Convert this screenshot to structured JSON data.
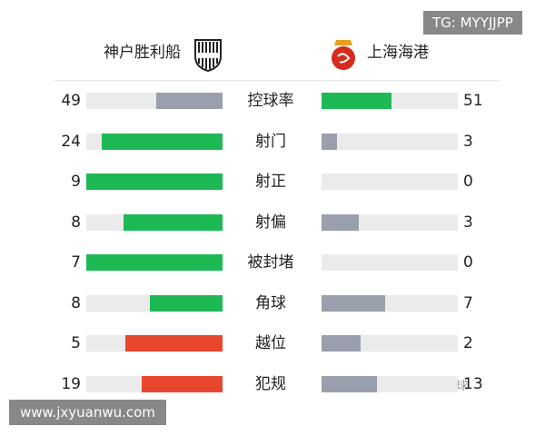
{
  "header": {
    "home_team": "神户胜利船",
    "away_team": "上海海港"
  },
  "stats": [
    {
      "label": "控球率",
      "home": 49,
      "away": 51,
      "home_color": "#9a9fae",
      "away_color": "#1db954"
    },
    {
      "label": "射门",
      "home": 24,
      "away": 3,
      "home_color": "#1db954",
      "away_color": "#9a9fae"
    },
    {
      "label": "射正",
      "home": 9,
      "away": 0,
      "home_color": "#1db954",
      "away_color": "#9a9fae"
    },
    {
      "label": "射偏",
      "home": 8,
      "away": 3,
      "home_color": "#1db954",
      "away_color": "#9a9fae"
    },
    {
      "label": "被封堵",
      "home": 7,
      "away": 0,
      "home_color": "#1db954",
      "away_color": "#9a9fae"
    },
    {
      "label": "角球",
      "home": 8,
      "away": 7,
      "home_color": "#1db954",
      "away_color": "#9a9fae"
    },
    {
      "label": "越位",
      "home": 5,
      "away": 2,
      "home_color": "#e8462e",
      "away_color": "#9a9fae"
    },
    {
      "label": "犯规",
      "home": 19,
      "away": 13,
      "home_color": "#e8462e",
      "away_color": "#9a9fae"
    }
  ],
  "watermarks": {
    "top": "TG: MYYJJPP",
    "bottom": "www.jxyuanwu.com",
    "overlay": "@青眼看球"
  }
}
